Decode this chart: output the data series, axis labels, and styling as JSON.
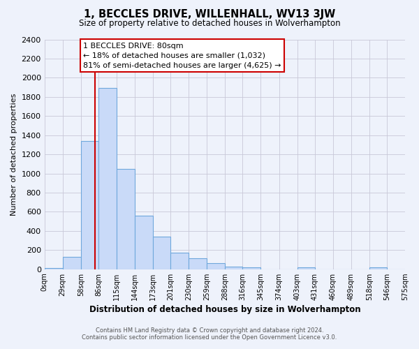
{
  "title": "1, BECCLES DRIVE, WILLENHALL, WV13 3JW",
  "subtitle": "Size of property relative to detached houses in Wolverhampton",
  "xlabel": "Distribution of detached houses by size in Wolverhampton",
  "ylabel": "Number of detached properties",
  "footer_lines": [
    "Contains HM Land Registry data © Crown copyright and database right 2024.",
    "Contains public sector information licensed under the Open Government Licence v3.0."
  ],
  "bin_labels": [
    "0sqm",
    "29sqm",
    "58sqm",
    "86sqm",
    "115sqm",
    "144sqm",
    "173sqm",
    "201sqm",
    "230sqm",
    "259sqm",
    "288sqm",
    "316sqm",
    "345sqm",
    "374sqm",
    "403sqm",
    "431sqm",
    "460sqm",
    "489sqm",
    "518sqm",
    "546sqm",
    "575sqm"
  ],
  "bin_edges": [
    0,
    29,
    58,
    86,
    115,
    144,
    173,
    201,
    230,
    259,
    288,
    316,
    345,
    374,
    403,
    431,
    460,
    489,
    518,
    546,
    575
  ],
  "bar_heights": [
    15,
    130,
    1340,
    1890,
    1050,
    560,
    340,
    175,
    115,
    60,
    30,
    20,
    0,
    0,
    20,
    0,
    0,
    0,
    20,
    0
  ],
  "bar_color": "#c9daf8",
  "bar_edge_color": "#6fa8dc",
  "bar_edge_width": 0.8,
  "vline_x": 80,
  "vline_color": "#cc0000",
  "ylim": [
    0,
    2400
  ],
  "yticks": [
    0,
    200,
    400,
    600,
    800,
    1000,
    1200,
    1400,
    1600,
    1800,
    2000,
    2200,
    2400
  ],
  "grid_color": "#c8c8d8",
  "background_color": "#eef2fb",
  "annotation_text": "1 BECCLES DRIVE: 80sqm\n← 18% of detached houses are smaller (1,032)\n81% of semi-detached houses are larger (4,625) →",
  "annotation_box_color": "#ffffff",
  "annotation_box_edge": "#cc0000",
  "property_sqm": 80
}
